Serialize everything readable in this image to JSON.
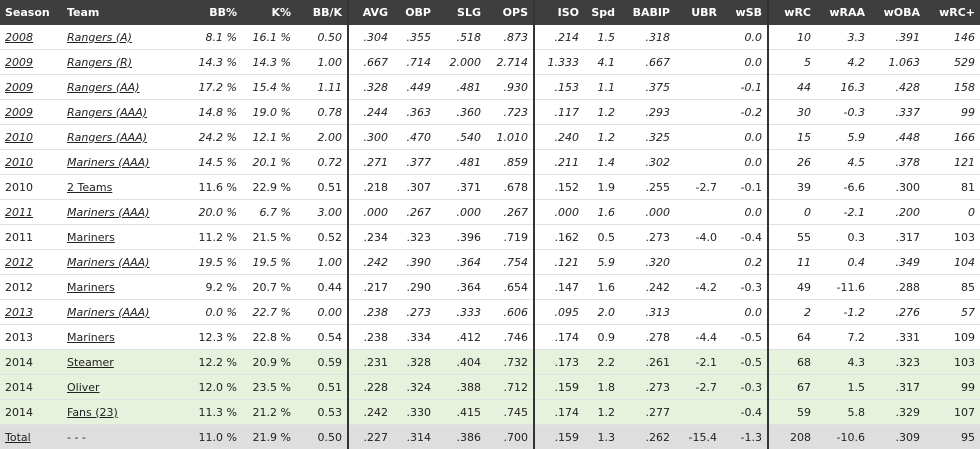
{
  "columns": [
    "Season",
    "Team",
    "BB%",
    "K%",
    "BB/K",
    "AVG",
    "OBP",
    "SLG",
    "OPS",
    "ISO",
    "Spd",
    "BABIP",
    "UBR",
    "wSB",
    "wRC",
    "wRAA",
    "wOBA",
    "wRC+"
  ],
  "rows": [
    {
      "type": "minor",
      "cells": [
        "2008",
        "Rangers (A)",
        "8.1 %",
        "16.1 %",
        "0.50",
        ".304",
        ".355",
        ".518",
        ".873",
        ".214",
        "1.5",
        ".318",
        "",
        "0.0",
        "10",
        "3.3",
        ".391",
        "146"
      ]
    },
    {
      "type": "minor",
      "cells": [
        "2009",
        "Rangers (R)",
        "14.3 %",
        "14.3 %",
        "1.00",
        ".667",
        ".714",
        "2.000",
        "2.714",
        "1.333",
        "4.1",
        ".667",
        "",
        "0.0",
        "5",
        "4.2",
        "1.063",
        "529"
      ]
    },
    {
      "type": "minor",
      "cells": [
        "2009",
        "Rangers (AA)",
        "17.2 %",
        "15.4 %",
        "1.11",
        ".328",
        ".449",
        ".481",
        ".930",
        ".153",
        "1.1",
        ".375",
        "",
        "-0.1",
        "44",
        "16.3",
        ".428",
        "158"
      ]
    },
    {
      "type": "minor",
      "cells": [
        "2009",
        "Rangers (AAA)",
        "14.8 %",
        "19.0 %",
        "0.78",
        ".244",
        ".363",
        ".360",
        ".723",
        ".117",
        "1.2",
        ".293",
        "",
        "-0.2",
        "30",
        "-0.3",
        ".337",
        "99"
      ]
    },
    {
      "type": "minor",
      "cells": [
        "2010",
        "Rangers (AAA)",
        "24.2 %",
        "12.1 %",
        "2.00",
        ".300",
        ".470",
        ".540",
        "1.010",
        ".240",
        "1.2",
        ".325",
        "",
        "0.0",
        "15",
        "5.9",
        ".448",
        "166"
      ]
    },
    {
      "type": "minor",
      "cells": [
        "2010",
        "Mariners (AAA)",
        "14.5 %",
        "20.1 %",
        "0.72",
        ".271",
        ".377",
        ".481",
        ".859",
        ".211",
        "1.4",
        ".302",
        "",
        "0.0",
        "26",
        "4.5",
        ".378",
        "121"
      ]
    },
    {
      "type": "major",
      "cells": [
        "2010",
        "2 Teams",
        "11.6 %",
        "22.9 %",
        "0.51",
        ".218",
        ".307",
        ".371",
        ".678",
        ".152",
        "1.9",
        ".255",
        "-2.7",
        "-0.1",
        "39",
        "-6.6",
        ".300",
        "81"
      ]
    },
    {
      "type": "minor",
      "cells": [
        "2011",
        "Mariners (AAA)",
        "20.0 %",
        "6.7 %",
        "3.00",
        ".000",
        ".267",
        ".000",
        ".267",
        ".000",
        "1.6",
        ".000",
        "",
        "0.0",
        "0",
        "-2.1",
        ".200",
        "0"
      ]
    },
    {
      "type": "major",
      "cells": [
        "2011",
        "Mariners",
        "11.2 %",
        "21.5 %",
        "0.52",
        ".234",
        ".323",
        ".396",
        ".719",
        ".162",
        "0.5",
        ".273",
        "-4.0",
        "-0.4",
        "55",
        "0.3",
        ".317",
        "103"
      ]
    },
    {
      "type": "minor",
      "cells": [
        "2012",
        "Mariners (AAA)",
        "19.5 %",
        "19.5 %",
        "1.00",
        ".242",
        ".390",
        ".364",
        ".754",
        ".121",
        "5.9",
        ".320",
        "",
        "0.2",
        "11",
        "0.4",
        ".349",
        "104"
      ]
    },
    {
      "type": "major",
      "cells": [
        "2012",
        "Mariners",
        "9.2 %",
        "20.7 %",
        "0.44",
        ".217",
        ".290",
        ".364",
        ".654",
        ".147",
        "1.6",
        ".242",
        "-4.2",
        "-0.3",
        "49",
        "-11.6",
        ".288",
        "85"
      ]
    },
    {
      "type": "minor",
      "cells": [
        "2013",
        "Mariners (AAA)",
        "0.0 %",
        "22.7 %",
        "0.00",
        ".238",
        ".273",
        ".333",
        ".606",
        ".095",
        "2.0",
        ".313",
        "",
        "0.0",
        "2",
        "-1.2",
        ".276",
        "57"
      ]
    },
    {
      "type": "major",
      "cells": [
        "2013",
        "Mariners",
        "12.3 %",
        "22.8 %",
        "0.54",
        ".238",
        ".334",
        ".412",
        ".746",
        ".174",
        "0.9",
        ".278",
        "-4.4",
        "-0.5",
        "64",
        "7.2",
        ".331",
        "109"
      ]
    },
    {
      "type": "proj",
      "cells": [
        "2014",
        "Steamer",
        "12.2 %",
        "20.9 %",
        "0.59",
        ".231",
        ".328",
        ".404",
        ".732",
        ".173",
        "2.2",
        ".261",
        "-2.1",
        "-0.5",
        "68",
        "4.3",
        ".323",
        "103"
      ]
    },
    {
      "type": "proj",
      "cells": [
        "2014",
        "Oliver",
        "12.0 %",
        "23.5 %",
        "0.51",
        ".228",
        ".324",
        ".388",
        ".712",
        ".159",
        "1.8",
        ".273",
        "-2.7",
        "-0.3",
        "67",
        "1.5",
        ".317",
        "99"
      ]
    },
    {
      "type": "proj",
      "cells": [
        "2014",
        "Fans (23)",
        "11.3 %",
        "21.2 %",
        "0.53",
        ".242",
        ".330",
        ".415",
        ".745",
        ".174",
        "1.2",
        ".277",
        "",
        "-0.4",
        "59",
        "5.8",
        ".329",
        "107"
      ]
    },
    {
      "type": "total",
      "cells": [
        "Total",
        "- - -",
        "11.0 %",
        "21.9 %",
        "0.50",
        ".227",
        ".314",
        ".386",
        ".700",
        ".159",
        "1.3",
        ".262",
        "-15.4",
        "-1.3",
        "208",
        "-10.6",
        ".309",
        "95"
      ]
    }
  ],
  "colors": {
    "header_bg": "#3e3e3e",
    "projection_bg": "#e6f2dc",
    "total_bg": "#dedede",
    "separator": "#333333"
  }
}
